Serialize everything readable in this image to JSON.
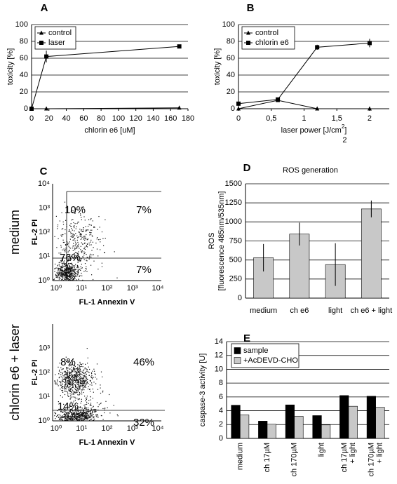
{
  "chart_data": [
    {
      "type": "line",
      "label": "A",
      "x_label": "chlorin e6 [uM]",
      "y_label": "toxicity [%]",
      "x": [
        0,
        17,
        170
      ],
      "xlim": [
        0,
        180
      ],
      "xticks": [
        0,
        20,
        40,
        60,
        80,
        100,
        120,
        140,
        160,
        180
      ],
      "ylim": [
        0,
        100
      ],
      "yticks": [
        0,
        20,
        40,
        60,
        80,
        100
      ],
      "grid": true,
      "legend": "upper left",
      "series": [
        {
          "name": "control",
          "color": "#000000",
          "marker": "triangle",
          "values": [
            0,
            0,
            1
          ],
          "errors": [
            0,
            0,
            1
          ]
        },
        {
          "name": "laser",
          "color": "#000000",
          "marker": "square",
          "values": [
            0,
            62,
            74
          ],
          "errors": [
            0,
            7,
            2
          ]
        }
      ]
    },
    {
      "type": "line",
      "label": "B",
      "x_label": "laser power [J/cm",
      "x_label_sup": "2",
      "x_label_end": "]",
      "x_label_sub": "2",
      "y_label": "toxicity [%]",
      "x": [
        0,
        0.6,
        1.2,
        2
      ],
      "xlim": [
        0,
        2.3
      ],
      "xticks": [
        0,
        {
          "value": 0.5,
          "label": "0,5"
        },
        1,
        {
          "value": 1.5,
          "label": "1,5"
        },
        2
      ],
      "ylim": [
        0,
        100
      ],
      "yticks": [
        0,
        20,
        40,
        60,
        80,
        100
      ],
      "grid": true,
      "legend": "upper left",
      "series": [
        {
          "name": "control",
          "color": "#000000",
          "marker": "triangle",
          "values": [
            0,
            10,
            0,
            0
          ],
          "errors": [
            0,
            2,
            0,
            2
          ]
        },
        {
          "name": "chlorin e6",
          "color": "#000000",
          "marker": "square",
          "values": [
            6,
            11,
            73,
            78
          ],
          "errors": [
            0,
            2,
            3,
            5
          ]
        }
      ]
    },
    {
      "type": "flow",
      "label": "C",
      "row_label": "medium",
      "x_label": "FL-1 Annexin V",
      "y_label": "FL-2 PI",
      "log_x": true,
      "log_y": true,
      "xlim": [
        1,
        10000
      ],
      "ylim": [
        1,
        10000
      ],
      "xticks": [
        {
          "value": 1,
          "label": "10⁰"
        },
        {
          "value": 10,
          "label": "10¹"
        },
        {
          "value": 100,
          "label": "10²"
        },
        {
          "value": 1000,
          "label": "10³"
        },
        {
          "value": 10000,
          "label": "10⁴"
        }
      ],
      "yticks": [
        {
          "value": 1,
          "label": "10⁰"
        },
        {
          "value": 10,
          "label": "10¹"
        },
        {
          "value": 100,
          "label": "10²"
        },
        {
          "value": 1000,
          "label": "10³"
        },
        {
          "value": 10000,
          "label": "10⁴"
        }
      ],
      "values": [
        10,
        7,
        76,
        7
      ],
      "value_labels": [
        "10%",
        "7%",
        "76%",
        "7%"
      ]
    },
    {
      "type": "flow",
      "row_label": "chlorin e6 + laser",
      "x_label": "FL-1 Annexin V",
      "y_label": "FL-2 PI",
      "log_x": true,
      "log_y": true,
      "xlim": [
        1,
        10000
      ],
      "ylim": [
        1,
        10000
      ],
      "xticks": [
        {
          "value": 1,
          "label": "10⁰"
        },
        {
          "value": 10,
          "label": "10¹"
        },
        {
          "value": 100,
          "label": "10²"
        },
        {
          "value": 1000,
          "label": "10³"
        },
        {
          "value": 10000,
          "label": "10⁴"
        }
      ],
      "yticks": [
        {
          "value": 1,
          "label": "10⁰"
        },
        {
          "value": 10,
          "label": "10¹"
        },
        {
          "value": 100,
          "label": "10²"
        },
        {
          "value": 1000,
          "label": "10³"
        }
      ],
      "values": [
        8,
        46,
        14,
        32
      ],
      "value_labels": [
        "8%",
        "46%",
        "14%",
        "32%"
      ]
    },
    {
      "type": "bar",
      "label": "D",
      "title": "ROS generation",
      "y_label": [
        "ROS",
        "[fluorescence 485nm/535nm]"
      ],
      "categories": [
        "medium",
        "ch e6",
        "light",
        "ch e6 + light"
      ],
      "values": [
        530,
        840,
        440,
        1170
      ],
      "errors": [
        180,
        150,
        280,
        110
      ],
      "color": "#c8c8c8",
      "ylim": [
        0,
        1500
      ],
      "yticks": [
        0,
        250,
        500,
        750,
        1000,
        1250,
        1500
      ],
      "grid": true
    },
    {
      "type": "bar",
      "label": "E",
      "y_label": "caspase-3 activity [U]",
      "categories": [
        [
          "medium"
        ],
        [
          "ch 17µM"
        ],
        [
          "ch 170µM"
        ],
        [
          "light"
        ],
        [
          "ch 17µM",
          "+ light"
        ],
        [
          "ch 170µM",
          "+ light"
        ]
      ],
      "series": [
        {
          "name": "sample",
          "color": "#000000",
          "values": [
            4.8,
            2.5,
            4.85,
            3.3,
            6.2,
            6.1
          ]
        },
        {
          "name": "+AcDEVD-CHO",
          "color": "#c8c8c8",
          "values": [
            3.4,
            2.05,
            3.2,
            1.95,
            4.65,
            4.5
          ]
        }
      ],
      "ylim": [
        0,
        14
      ],
      "yticks": [
        0,
        2,
        4,
        6,
        8,
        10,
        12,
        14
      ],
      "grid": true,
      "legend": "upper left"
    }
  ]
}
